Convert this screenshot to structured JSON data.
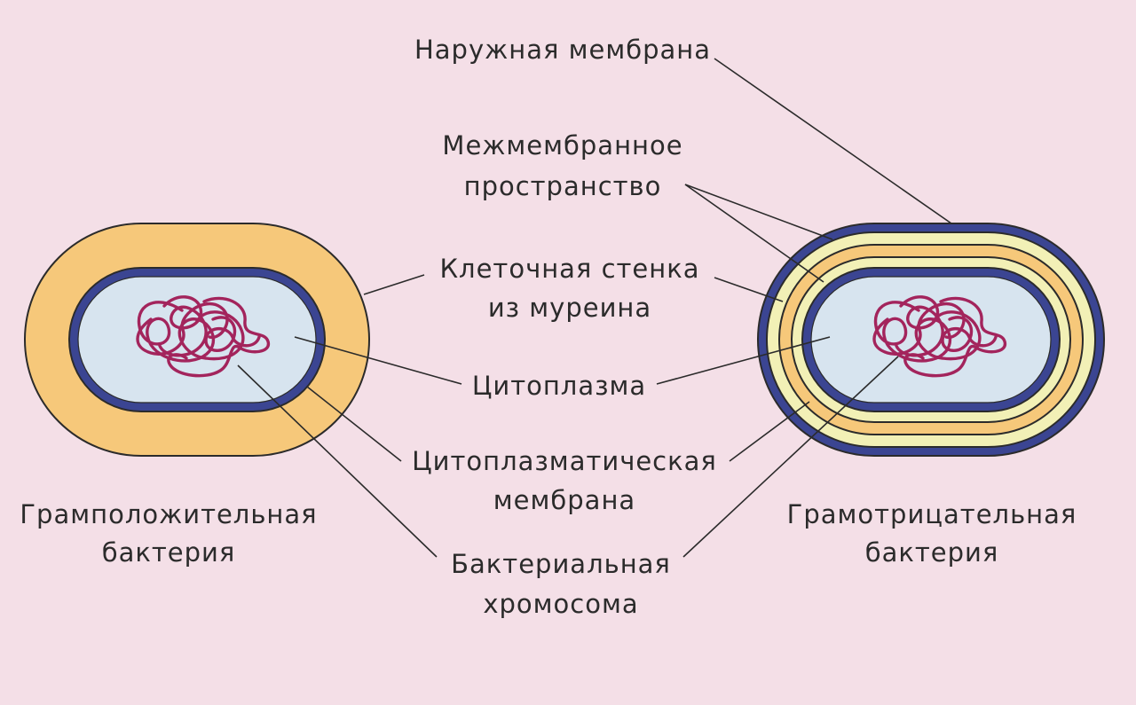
{
  "labels": {
    "outer_membrane": "Наружная мембрана",
    "periplasm_line1": "Межмембранное",
    "periplasm_line2": "пространство",
    "cell_wall_line1": "Клеточная стенка",
    "cell_wall_line2": "из муреина",
    "cytoplasm": "Цитоплазма",
    "cyto_membrane_line1": "Цитоплазматическая",
    "cyto_membrane_line2": "мембрана",
    "chromosome_line1": "Бактериальная",
    "chromosome_line2": "хромосома",
    "gram_positive_line1": "Грамположительная",
    "gram_positive_line2": "бактерия",
    "gram_negative_line1": "Грамотрицательная",
    "gram_negative_line2": "бактерия"
  },
  "colors": {
    "background": "#f4dfe7",
    "cell_wall": "#f6c87a",
    "periplasm": "#f2f0b6",
    "membrane": "#3b4592",
    "cytoplasm": "#d7e4ef",
    "chromosome": "#a3245c"
  }
}
